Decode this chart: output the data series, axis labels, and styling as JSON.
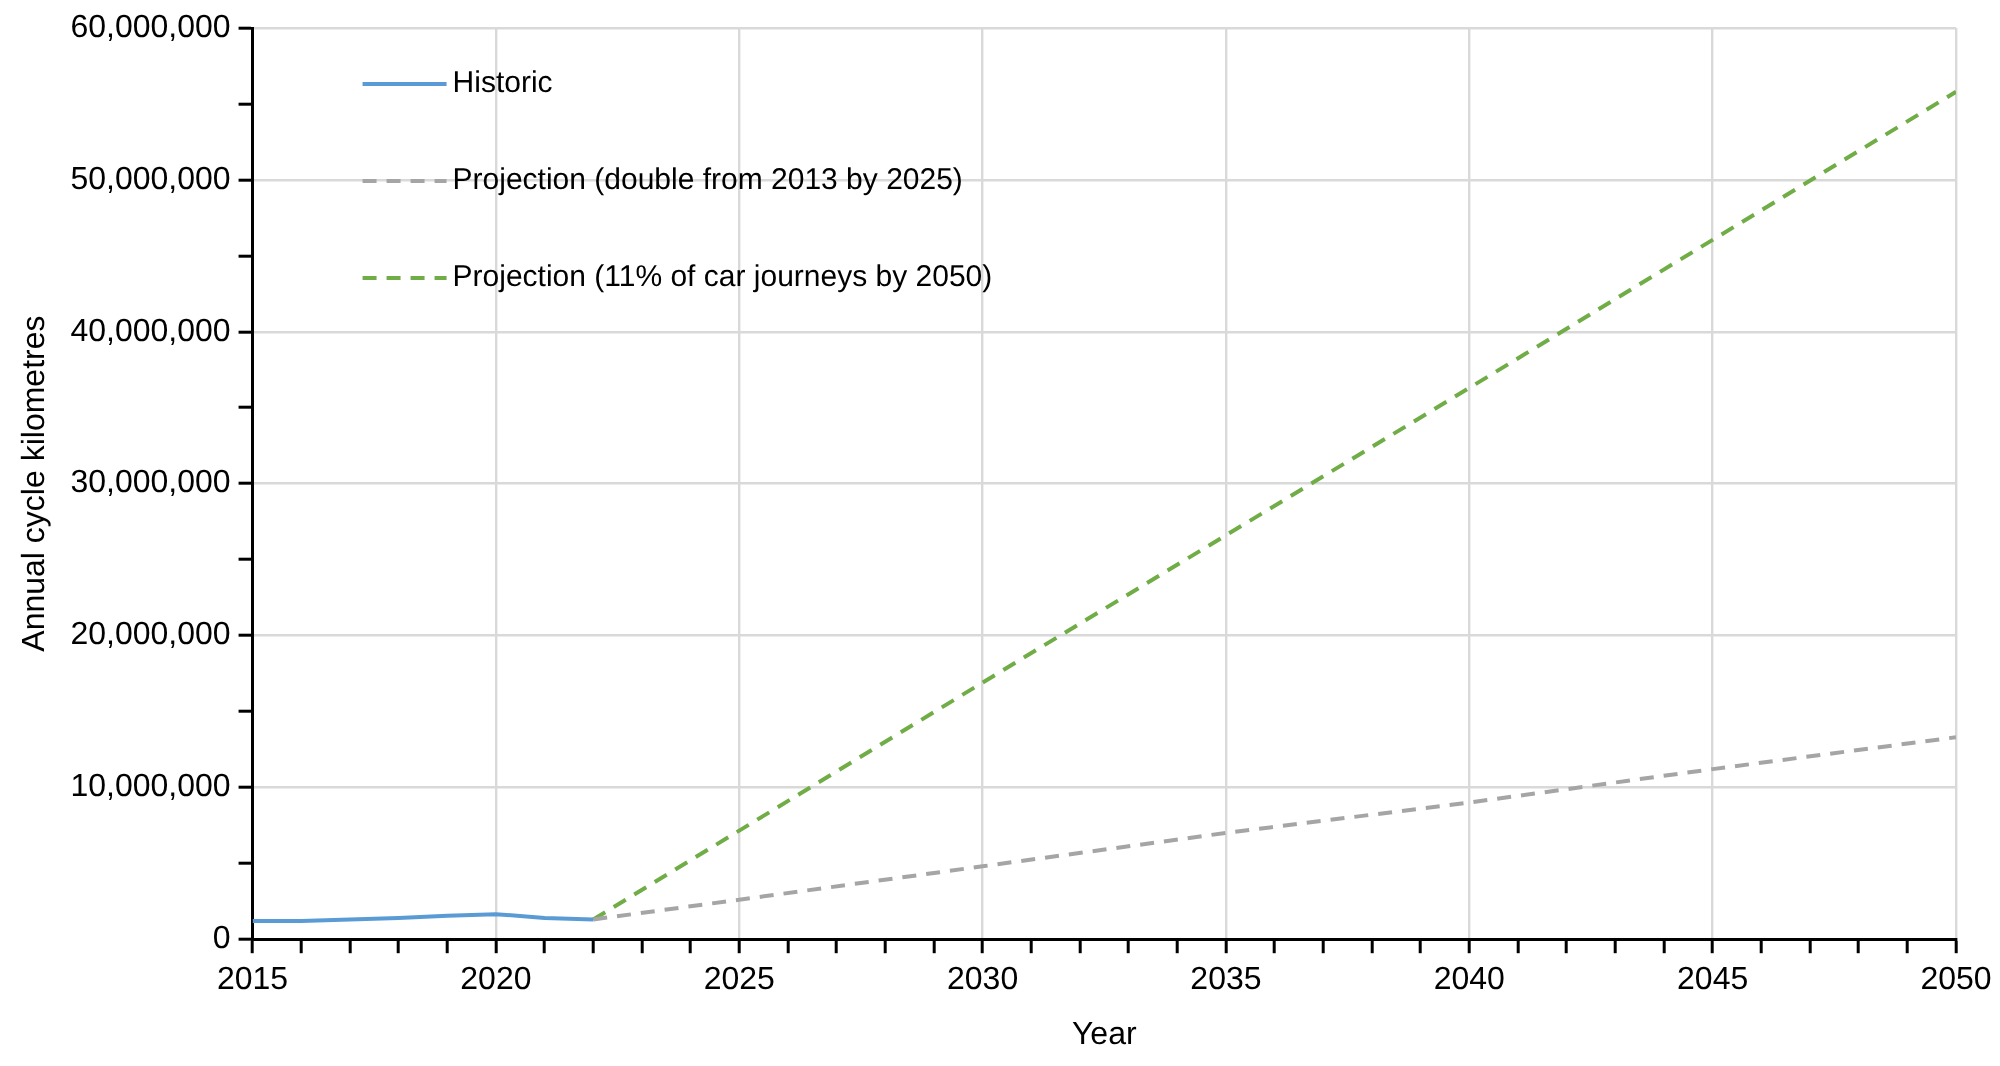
{
  "chart_data": {
    "type": "line",
    "xlabel": "Year",
    "ylabel": "Annual cycle kilometres",
    "series": [
      {
        "name": "Historic",
        "color": "#5b9bd5",
        "line_style": "solid",
        "x": [
          2015,
          2016,
          2017,
          2018,
          2019,
          2020,
          2021,
          2022
        ],
        "values": [
          1200000,
          1200000,
          1300000,
          1400000,
          1550000,
          1650000,
          1400000,
          1300000
        ]
      },
      {
        "name": "Projection (double from 2013 by 2025)",
        "color": "#a5a5a5",
        "line_style": "dashed",
        "x": [
          2022,
          2025,
          2030,
          2035,
          2040,
          2045,
          2050
        ],
        "values": [
          1300000,
          2600000,
          4800000,
          7000000,
          9000000,
          11200000,
          13300000
        ]
      },
      {
        "name": "Projection (11% of car journeys by 2050)",
        "color": "#70ad47",
        "line_style": "dashed",
        "x": [
          2022,
          2030,
          2040,
          2050
        ],
        "values": [
          1300000,
          16900000,
          36300000,
          55800000
        ]
      }
    ],
    "xlim": [
      2015,
      2050
    ],
    "xticks": [
      2015,
      {
        "value": 2016,
        "label": null
      },
      {
        "value": 2017,
        "label": null
      },
      {
        "value": 2018,
        "label": null
      },
      {
        "value": 2019,
        "label": null
      },
      2020,
      {
        "value": 2021,
        "label": null
      },
      {
        "value": 2022,
        "label": null
      },
      {
        "value": 2023,
        "label": null
      },
      {
        "value": 2024,
        "label": null
      },
      2025,
      {
        "value": 2026,
        "label": null
      },
      {
        "value": 2027,
        "label": null
      },
      {
        "value": 2028,
        "label": null
      },
      {
        "value": 2029,
        "label": null
      },
      2030,
      {
        "value": 2031,
        "label": null
      },
      {
        "value": 2032,
        "label": null
      },
      {
        "value": 2033,
        "label": null
      },
      {
        "value": 2034,
        "label": null
      },
      2035,
      {
        "value": 2036,
        "label": null
      },
      {
        "value": 2037,
        "label": null
      },
      {
        "value": 2038,
        "label": null
      },
      {
        "value": 2039,
        "label": null
      },
      2040,
      {
        "value": 2041,
        "label": null
      },
      {
        "value": 2042,
        "label": null
      },
      {
        "value": 2043,
        "label": null
      },
      {
        "value": 2044,
        "label": null
      },
      2045,
      {
        "value": 2046,
        "label": null
      },
      {
        "value": 2047,
        "label": null
      },
      {
        "value": 2048,
        "label": null
      },
      {
        "value": 2049,
        "label": null
      },
      2050
    ],
    "ylim": [
      0,
      60000000
    ],
    "yticks": [
      {
        "value": 0,
        "label": "0"
      },
      {
        "value": 5000000,
        "label": null
      },
      {
        "value": 10000000,
        "label": "10,000,000"
      },
      {
        "value": 15000000,
        "label": null
      },
      {
        "value": 20000000,
        "label": "20,000,000"
      },
      {
        "value": 25000000,
        "label": null
      },
      {
        "value": 30000000,
        "label": "30,000,000"
      },
      {
        "value": 35000000,
        "label": null
      },
      {
        "value": 40000000,
        "label": "40,000,000"
      },
      {
        "value": 45000000,
        "label": null
      },
      {
        "value": 50000000,
        "label": "50,000,000"
      },
      {
        "value": 55000000,
        "label": null
      },
      {
        "value": 60000000,
        "label": "60,000,000"
      }
    ],
    "grid": true,
    "legend": "top left",
    "marker": "none"
  }
}
